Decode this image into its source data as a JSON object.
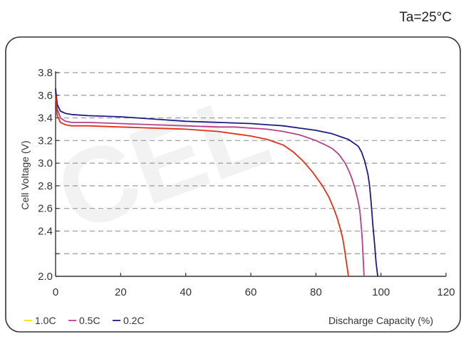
{
  "condition_label": "Ta=25°C",
  "chart_data": {
    "type": "line",
    "xlabel": "Discharge Capacity (%)",
    "ylabel": "Cell Voltage (V)",
    "xlim": [
      0,
      120
    ],
    "ylim": [
      2.0,
      3.8
    ],
    "x_ticks": [
      0,
      20,
      40,
      60,
      80,
      100,
      120
    ],
    "y_ticks": [
      2.0,
      2.2,
      2.4,
      2.6,
      2.8,
      3.0,
      3.2,
      3.4,
      3.6,
      3.8
    ],
    "y_tick_labels": [
      "2.0",
      "",
      "2.4",
      "2.6",
      "2.8",
      "3.0",
      "3.2",
      "3.4",
      "3.6",
      "3.8"
    ],
    "grid": "horizontal-dashed",
    "legend": "bottom-left",
    "series": [
      {
        "name": "1.0C",
        "color": "#ffe000",
        "x": [],
        "y": []
      },
      {
        "name": "0.5C",
        "color": "#b8408a",
        "x": [
          0,
          0.5,
          1.5,
          3,
          5,
          10,
          20,
          30,
          40,
          50,
          55,
          60,
          65,
          70,
          75,
          80,
          83,
          85,
          87,
          89,
          90,
          91,
          92,
          93,
          93.5,
          94,
          94.3,
          94.6,
          94.8
        ],
        "y": [
          3.63,
          3.48,
          3.4,
          3.37,
          3.36,
          3.36,
          3.35,
          3.34,
          3.33,
          3.32,
          3.32,
          3.31,
          3.3,
          3.28,
          3.25,
          3.2,
          3.16,
          3.13,
          3.08,
          3.0,
          2.94,
          2.87,
          2.78,
          2.66,
          2.58,
          2.42,
          2.3,
          2.12,
          2.0
        ]
      },
      {
        "name": "0.2C",
        "color": "#1c1c88",
        "x": [
          0,
          0.5,
          1.5,
          3,
          5,
          10,
          20,
          30,
          40,
          50,
          60,
          65,
          70,
          75,
          80,
          85,
          88,
          90,
          91,
          93,
          94,
          95,
          96,
          96.5,
          97,
          97.5,
          98,
          98.5,
          99
        ],
        "y": [
          3.66,
          3.52,
          3.46,
          3.44,
          3.43,
          3.42,
          3.41,
          3.39,
          3.37,
          3.36,
          3.35,
          3.34,
          3.33,
          3.31,
          3.29,
          3.26,
          3.23,
          3.21,
          3.19,
          3.15,
          3.1,
          3.02,
          2.9,
          2.8,
          2.64,
          2.45,
          2.3,
          2.12,
          2.0
        ]
      },
      {
        "name": "",
        "color": "#e03018",
        "x": [
          0,
          0.5,
          1.5,
          3,
          5,
          10,
          20,
          30,
          40,
          50,
          55,
          60,
          65,
          70,
          73,
          76,
          79,
          82,
          84,
          85.5,
          86.5,
          87.5,
          88.2,
          88.8,
          89.2,
          89.6,
          90
        ],
        "y": [
          3.6,
          3.42,
          3.36,
          3.34,
          3.33,
          3.33,
          3.32,
          3.31,
          3.3,
          3.28,
          3.26,
          3.24,
          3.21,
          3.16,
          3.1,
          3.02,
          2.92,
          2.8,
          2.7,
          2.6,
          2.52,
          2.42,
          2.34,
          2.24,
          2.16,
          2.08,
          2.0
        ]
      }
    ]
  }
}
